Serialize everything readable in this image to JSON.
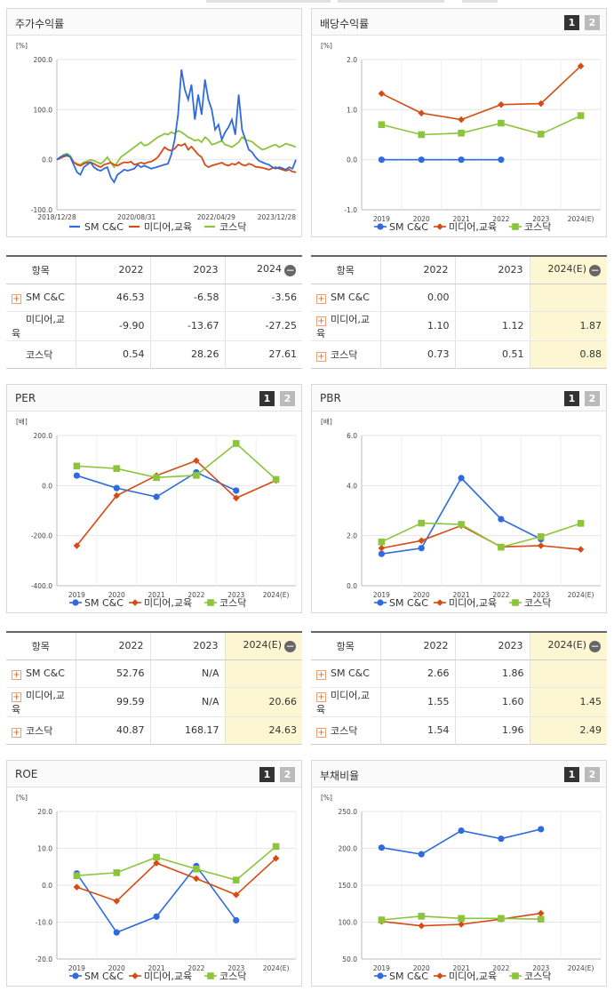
{
  "colors": {
    "sm": "#2f6bdc",
    "media": "#d64a14",
    "kosdaq": "#8cc43c"
  },
  "series_names": [
    "SM C&C",
    "미디어,교육",
    "코스닥"
  ],
  "panels": {
    "stock": {
      "title": "주가수익률"
    },
    "dividend": {
      "title": "배당수익률",
      "page1": "1",
      "page2": "2"
    },
    "per": {
      "title": "PER",
      "page1": "1",
      "page2": "2"
    },
    "pbr": {
      "title": "PBR",
      "page1": "1",
      "page2": "2"
    },
    "roe": {
      "title": "ROE",
      "page1": "1",
      "page2": "2"
    },
    "debt": {
      "title": "부채비율",
      "page1": "1",
      "page2": "2"
    }
  },
  "tables": {
    "stock": {
      "headers": [
        "항목",
        "2022",
        "2023",
        "2024"
      ],
      "rows": [
        {
          "name": "SM C&C",
          "plus": true,
          "values": [
            "46.53",
            "-6.58",
            "-3.56"
          ]
        },
        {
          "name": "미디어,교육",
          "plus": false,
          "values": [
            "-9.90",
            "-13.67",
            "-27.25"
          ]
        },
        {
          "name": "코스닥",
          "plus": false,
          "values": [
            "0.54",
            "28.26",
            "27.61"
          ]
        }
      ]
    },
    "dividend": {
      "headers": [
        "항목",
        "2022",
        "2023",
        "2024(E)"
      ],
      "rows": [
        {
          "name": "SM C&C",
          "plus": true,
          "values": [
            "0.00",
            "",
            ""
          ]
        },
        {
          "name": "미디어,교육",
          "plus": true,
          "values": [
            "1.10",
            "1.12",
            "1.87"
          ]
        },
        {
          "name": "코스닥",
          "plus": true,
          "values": [
            "0.73",
            "0.51",
            "0.88"
          ]
        }
      ]
    },
    "per": {
      "headers": [
        "항목",
        "2022",
        "2023",
        "2024(E)"
      ],
      "rows": [
        {
          "name": "SM C&C",
          "plus": true,
          "values": [
            "52.76",
            "N/A",
            ""
          ]
        },
        {
          "name": "미디어,교육",
          "plus": true,
          "values": [
            "99.59",
            "N/A",
            "20.66"
          ]
        },
        {
          "name": "코스닥",
          "plus": true,
          "values": [
            "40.87",
            "168.17",
            "24.63"
          ]
        }
      ]
    },
    "pbr": {
      "headers": [
        "항목",
        "2022",
        "2023",
        "2024(E)"
      ],
      "rows": [
        {
          "name": "SM C&C",
          "plus": true,
          "values": [
            "2.66",
            "1.86",
            ""
          ]
        },
        {
          "name": "미디어,교육",
          "plus": true,
          "values": [
            "1.55",
            "1.60",
            "1.45"
          ]
        },
        {
          "name": "코스닥",
          "plus": true,
          "values": [
            "1.54",
            "1.96",
            "2.49"
          ]
        }
      ]
    }
  },
  "chart_data": [
    {
      "id": "stock",
      "type": "line",
      "unit": "[%]",
      "ylim": [
        -100,
        200
      ],
      "yticks": [
        "200.0",
        "100.0",
        "0.0",
        "-100.0"
      ],
      "xtick_labels": [
        "2018/12/28",
        "2020/08/31",
        "2022/04/29",
        "2023/12/28"
      ],
      "series": [
        {
          "name": "SM C&C",
          "values": [
            0,
            5,
            8,
            10,
            5,
            -10,
            -25,
            -30,
            -15,
            -10,
            -5,
            -15,
            -20,
            -22,
            -18,
            -15,
            -35,
            -45,
            -30,
            -25,
            -20,
            -22,
            -20,
            -18,
            -10,
            -15,
            -12,
            -15,
            -18,
            -16,
            -14,
            -12,
            -10,
            -8,
            10,
            40,
            90,
            180,
            140,
            120,
            150,
            80,
            130,
            90,
            160,
            120,
            100,
            60,
            70,
            40,
            55,
            65,
            80,
            50,
            130,
            60,
            40,
            20,
            15,
            5,
            -2,
            -5,
            -8,
            -10,
            -15,
            -18,
            -15,
            -17,
            -20,
            -15,
            -18,
            0
          ]
        },
        {
          "name": "미디어,교육",
          "values": [
            0,
            3,
            6,
            8,
            5,
            -5,
            -10,
            -12,
            -8,
            -6,
            -5,
            -8,
            -12,
            -15,
            -10,
            -8,
            -6,
            -10,
            -12,
            -8,
            -5,
            -6,
            -4,
            -10,
            -8,
            -6,
            -8,
            -5,
            -4,
            0,
            5,
            15,
            25,
            20,
            18,
            22,
            30,
            28,
            32,
            20,
            26,
            18,
            10,
            5,
            -10,
            -15,
            -12,
            -10,
            -8,
            -6,
            -10,
            -12,
            -8,
            -10,
            -5,
            -10,
            -12,
            -8,
            -10,
            -14,
            -15,
            -16,
            -18,
            -20,
            -17,
            -15,
            -18,
            -20,
            -22,
            -20,
            -24,
            -25
          ]
        },
        {
          "name": "코스닥",
          "values": [
            0,
            5,
            10,
            12,
            8,
            -5,
            -8,
            -10,
            -5,
            -3,
            0,
            -2,
            -5,
            -8,
            -3,
            5,
            -5,
            -15,
            -5,
            5,
            10,
            15,
            20,
            25,
            30,
            35,
            28,
            30,
            35,
            40,
            45,
            48,
            52,
            50,
            55,
            52,
            58,
            55,
            50,
            45,
            42,
            38,
            40,
            35,
            45,
            40,
            30,
            32,
            35,
            38,
            30,
            28,
            25,
            30,
            35,
            45,
            40,
            38,
            36,
            30,
            25,
            20,
            22,
            25,
            28,
            30,
            25,
            28,
            32,
            30,
            28,
            25
          ]
        }
      ]
    },
    {
      "id": "dividend",
      "type": "line",
      "unit": "[%]",
      "ylim": [
        -1,
        2
      ],
      "yticks": [
        "2.0",
        "1.0",
        "0.0",
        "-1.0"
      ],
      "categories": [
        "2019",
        "2020",
        "2021",
        "2022",
        "2023",
        "2024(E)"
      ],
      "series": [
        {
          "name": "SM C&C",
          "values": [
            0.0,
            0.0,
            0.0,
            0.0,
            null,
            null
          ]
        },
        {
          "name": "미디어,교육",
          "values": [
            1.32,
            0.93,
            0.8,
            1.1,
            1.12,
            1.87
          ]
        },
        {
          "name": "코스닥",
          "values": [
            0.7,
            0.5,
            0.53,
            0.73,
            0.51,
            0.88
          ]
        }
      ]
    },
    {
      "id": "per",
      "type": "line",
      "unit": "[배]",
      "ylim": [
        -400,
        200
      ],
      "yticks": [
        "200.0",
        "0.0",
        "-200.0",
        "-400.0"
      ],
      "categories": [
        "2019",
        "2020",
        "2021",
        "2022",
        "2023",
        "2024(E)"
      ],
      "series": [
        {
          "name": "SM C&C",
          "values": [
            40,
            -10,
            -45,
            52.76,
            -20,
            null
          ]
        },
        {
          "name": "미디어,교육",
          "values": [
            -240,
            -40,
            40,
            99.59,
            -50,
            20.66
          ]
        },
        {
          "name": "코스닥",
          "values": [
            78,
            68,
            32,
            40.87,
            168.17,
            24.63
          ]
        }
      ]
    },
    {
      "id": "pbr",
      "type": "line",
      "unit": "[배]",
      "ylim": [
        0,
        6
      ],
      "yticks": [
        "6.0",
        "4.0",
        "2.0",
        "0.0"
      ],
      "categories": [
        "2019",
        "2020",
        "2021",
        "2022",
        "2023",
        "2024(E)"
      ],
      "series": [
        {
          "name": "SM C&C",
          "values": [
            1.27,
            1.5,
            4.3,
            2.66,
            1.86,
            null
          ]
        },
        {
          "name": "미디어,교육",
          "values": [
            1.5,
            1.8,
            2.4,
            1.55,
            1.6,
            1.45
          ]
        },
        {
          "name": "코스닥",
          "values": [
            1.75,
            2.5,
            2.45,
            1.54,
            1.96,
            2.49
          ]
        }
      ]
    },
    {
      "id": "roe",
      "type": "line",
      "unit": "[%]",
      "ylim": [
        -20,
        20
      ],
      "yticks": [
        "20.0",
        "10.0",
        "0.0",
        "-10.0",
        "-20.0"
      ],
      "categories": [
        "2019",
        "2020",
        "2021",
        "2022",
        "2023",
        "2024(E)"
      ],
      "series": [
        {
          "name": "SM C&C",
          "values": [
            3.2,
            -12.8,
            -8.5,
            5.2,
            -9.5,
            null
          ]
        },
        {
          "name": "미디어,교육",
          "values": [
            -0.5,
            -4.3,
            6.0,
            1.8,
            -2.6,
            7.3
          ]
        },
        {
          "name": "코스닥",
          "values": [
            2.6,
            3.4,
            7.6,
            4.4,
            1.4,
            10.5
          ]
        }
      ]
    },
    {
      "id": "debt",
      "type": "line",
      "unit": "[%]",
      "ylim": [
        50,
        250
      ],
      "yticks": [
        "250.0",
        "200.0",
        "150.0",
        "100.0",
        "50.0"
      ],
      "categories": [
        "2019",
        "2020",
        "2021",
        "2022",
        "2023",
        "2024(E)"
      ],
      "series": [
        {
          "name": "SM C&C",
          "values": [
            201,
            192,
            224,
            213,
            226,
            null
          ]
        },
        {
          "name": "미디어,교육",
          "values": [
            101,
            95,
            97,
            104,
            112,
            null
          ]
        },
        {
          "name": "코스닥",
          "values": [
            103,
            108,
            105,
            105,
            104,
            null
          ]
        }
      ]
    }
  ]
}
